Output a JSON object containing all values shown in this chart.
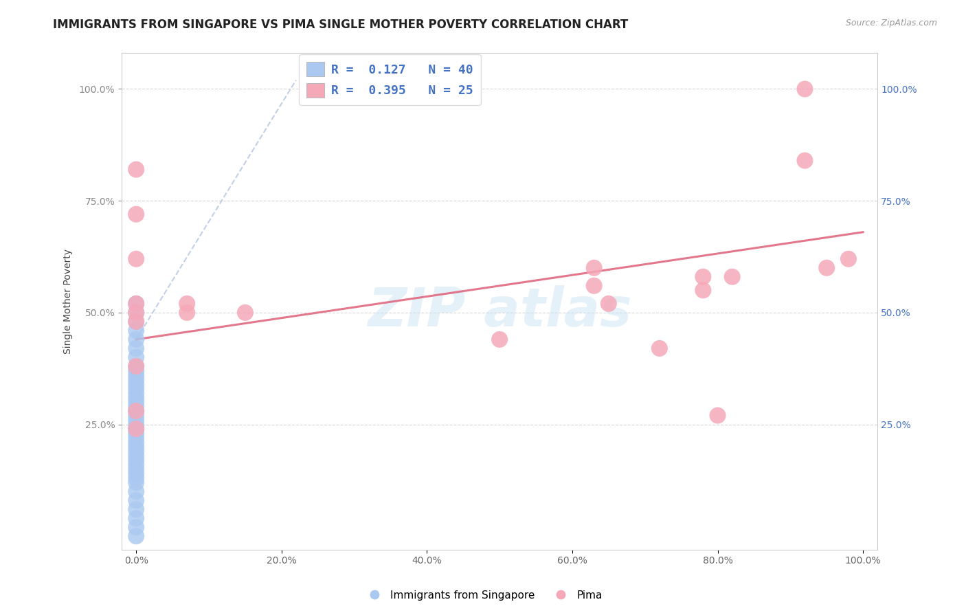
{
  "title": "IMMIGRANTS FROM SINGAPORE VS PIMA SINGLE MOTHER POVERTY CORRELATION CHART",
  "source": "Source: ZipAtlas.com",
  "ylabel": "Single Mother Poverty",
  "blue_color": "#aac8f0",
  "pink_color": "#f5a8b8",
  "blue_line_color": "#a0b8d8",
  "pink_line_color": "#e06880",
  "blue_scatter": [
    [
      0.0,
      0.42
    ],
    [
      0.0,
      0.4
    ],
    [
      0.0,
      0.38
    ],
    [
      0.0,
      0.37
    ],
    [
      0.0,
      0.36
    ],
    [
      0.0,
      0.35
    ],
    [
      0.0,
      0.34
    ],
    [
      0.0,
      0.33
    ],
    [
      0.0,
      0.32
    ],
    [
      0.0,
      0.31
    ],
    [
      0.0,
      0.3
    ],
    [
      0.0,
      0.29
    ],
    [
      0.0,
      0.28
    ],
    [
      0.0,
      0.27
    ],
    [
      0.0,
      0.26
    ],
    [
      0.0,
      0.25
    ],
    [
      0.0,
      0.24
    ],
    [
      0.0,
      0.23
    ],
    [
      0.0,
      0.22
    ],
    [
      0.0,
      0.21
    ],
    [
      0.0,
      0.2
    ],
    [
      0.0,
      0.19
    ],
    [
      0.0,
      0.18
    ],
    [
      0.0,
      0.17
    ],
    [
      0.0,
      0.16
    ],
    [
      0.0,
      0.15
    ],
    [
      0.0,
      0.14
    ],
    [
      0.0,
      0.13
    ],
    [
      0.0,
      0.12
    ],
    [
      0.0,
      0.1
    ],
    [
      0.0,
      0.08
    ],
    [
      0.0,
      0.06
    ],
    [
      0.0,
      0.04
    ],
    [
      0.0,
      0.5
    ],
    [
      0.0,
      0.52
    ],
    [
      0.0,
      0.48
    ],
    [
      0.0,
      0.46
    ],
    [
      0.0,
      0.44
    ],
    [
      0.0,
      0.02
    ],
    [
      0.0,
      0.0
    ]
  ],
  "pink_scatter": [
    [
      0.0,
      0.82
    ],
    [
      0.0,
      0.72
    ],
    [
      0.0,
      0.62
    ],
    [
      0.0,
      0.52
    ],
    [
      0.0,
      0.5
    ],
    [
      0.0,
      0.48
    ],
    [
      0.0,
      0.38
    ],
    [
      0.0,
      0.28
    ],
    [
      0.0,
      0.24
    ],
    [
      0.07,
      0.52
    ],
    [
      0.07,
      0.5
    ],
    [
      0.15,
      0.5
    ],
    [
      0.5,
      0.44
    ],
    [
      0.63,
      0.6
    ],
    [
      0.63,
      0.56
    ],
    [
      0.65,
      0.52
    ],
    [
      0.72,
      0.42
    ],
    [
      0.78,
      0.58
    ],
    [
      0.78,
      0.55
    ],
    [
      0.8,
      0.27
    ],
    [
      0.82,
      0.58
    ],
    [
      0.92,
      1.0
    ],
    [
      0.92,
      0.84
    ],
    [
      0.95,
      0.6
    ],
    [
      0.98,
      0.62
    ]
  ],
  "blue_trend_x": [
    0.0,
    0.22
  ],
  "blue_trend_y": [
    0.44,
    1.02
  ],
  "pink_trend_x": [
    0.0,
    1.0
  ],
  "pink_trend_y": [
    0.44,
    0.68
  ],
  "xlim": [
    -0.02,
    1.02
  ],
  "ylim": [
    -0.03,
    1.08
  ],
  "xticks": [
    0.0,
    0.2,
    0.4,
    0.6,
    0.8,
    1.0
  ],
  "xtick_labels": [
    "0.0%",
    "20.0%",
    "40.0%",
    "60.0%",
    "80.0%",
    "100.0%"
  ],
  "yticks": [
    0.25,
    0.5,
    0.75,
    1.0
  ],
  "ytick_labels_left": [
    "25.0%",
    "50.0%",
    "75.0%",
    "100.0%"
  ],
  "ytick_labels_right": [
    "25.0%",
    "50.0%",
    "75.0%",
    "100.0%"
  ],
  "legend_text1": "R =  0.127   N = 40",
  "legend_text2": "R =  0.395   N = 25",
  "bottom_legend1": "Immigrants from Singapore",
  "bottom_legend2": "Pima",
  "title_fontsize": 12,
  "tick_fontsize": 10,
  "legend_fontsize": 13,
  "source_fontsize": 9,
  "ylabel_fontsize": 10
}
